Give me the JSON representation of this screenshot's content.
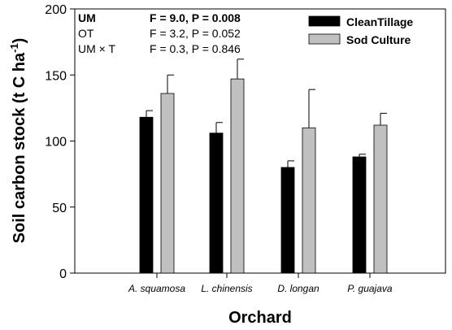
{
  "chart_data": {
    "type": "bar",
    "title": "",
    "xlabel": "Orchard",
    "ylabel": "Soil carbon stock (t C ha",
    "ylabel_superscript": "-1",
    "ylabel_suffix": ")",
    "ylim": [
      0,
      200
    ],
    "yticks": [
      0,
      50,
      100,
      150,
      200
    ],
    "categories": [
      "A. squamosa",
      "L. chinensis",
      "D. longan",
      "P. guajava"
    ],
    "series": [
      {
        "name": "CleanTillage",
        "color": "#000000",
        "values": [
          118,
          106,
          80,
          88
        ],
        "errors": [
          5,
          8,
          5,
          2
        ]
      },
      {
        "name": "Sod Culture",
        "color": "#c0c0c0",
        "values": [
          136,
          147,
          110,
          112
        ],
        "errors": [
          14,
          15,
          29,
          9
        ]
      }
    ],
    "legend_position": "top-right",
    "grid": false,
    "annotations": [
      {
        "label": "UM",
        "stat": "F = 9.0, P = 0.008",
        "bold": true
      },
      {
        "label": "OT",
        "stat": "F = 3.2, P = 0.052",
        "bold": false
      },
      {
        "label": "UM × T",
        "stat": "F = 0.3, P = 0.846",
        "bold": false
      }
    ]
  }
}
